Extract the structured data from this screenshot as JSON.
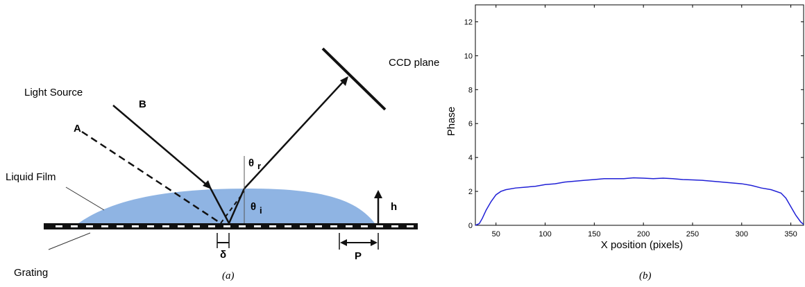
{
  "diagram": {
    "light_source": "Light Source",
    "ray_a": "A",
    "ray_b": "B",
    "ccd_plane": "CCD plane",
    "liquid_film": "Liquid Film",
    "grating": "Grating",
    "theta_r": [
      "θ",
      "r"
    ],
    "theta_i": [
      "θ",
      "i"
    ],
    "height": "h",
    "delta": "δ",
    "period": "P",
    "caption": "(a)"
  },
  "chart_data": {
    "type": "line",
    "caption": "(b)",
    "x_label": "X position (pixels)",
    "y_label": "Phase",
    "x": [
      29,
      33,
      36,
      40,
      45,
      50,
      55,
      60,
      70,
      80,
      90,
      100,
      110,
      120,
      130,
      140,
      150,
      160,
      170,
      180,
      190,
      200,
      210,
      220,
      230,
      240,
      250,
      260,
      270,
      280,
      290,
      300,
      310,
      320,
      330,
      340,
      345,
      350,
      355,
      360,
      363
    ],
    "series": [
      {
        "name": "Phase",
        "color": "#1f1fd6",
        "values": [
          0,
          0.1,
          0.4,
          0.9,
          1.4,
          1.8,
          2.0,
          2.1,
          2.2,
          2.25,
          2.3,
          2.4,
          2.45,
          2.55,
          2.6,
          2.65,
          2.7,
          2.75,
          2.75,
          2.75,
          2.8,
          2.78,
          2.75,
          2.78,
          2.75,
          2.7,
          2.68,
          2.65,
          2.6,
          2.55,
          2.5,
          2.45,
          2.35,
          2.2,
          2.1,
          1.9,
          1.6,
          1.1,
          0.6,
          0.2,
          0.05
        ]
      }
    ],
    "xlim": [
      29,
      363
    ],
    "ylim": [
      0,
      13
    ],
    "xticks": [
      50,
      100,
      150,
      200,
      250,
      300,
      350
    ],
    "yticks": [
      0,
      2,
      4,
      6,
      8,
      10,
      12
    ],
    "grid": false
  }
}
